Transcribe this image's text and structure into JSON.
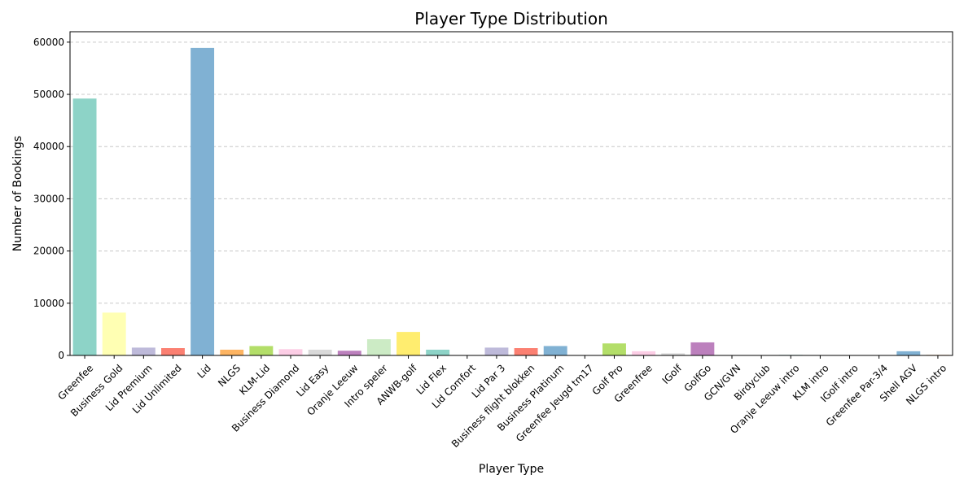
{
  "chart_data": {
    "type": "bar",
    "title": "Player Type Distribution",
    "xlabel": "Player Type",
    "ylabel": "Number of Bookings",
    "ylim": [
      0,
      62000
    ],
    "yticks": [
      0,
      10000,
      20000,
      30000,
      40000,
      50000,
      60000
    ],
    "grid": "y-dashed",
    "categories": [
      "Greenfee",
      "Business Gold",
      "Lid Premium",
      "Lid Unlimited",
      "Lid",
      "NLGS",
      "KLM-Lid",
      "Business Diamond",
      "Lid Easy",
      "Oranje Leeuw",
      "Intro speler",
      "ANWB-golf",
      "Lid Flex",
      "Lid Comfort",
      "Lid Par 3",
      "Business flight blokken",
      "Business Platinum",
      "Greenfee Jeugd tm17",
      "Golf Pro",
      "Greenfree",
      "IGolf",
      "GolfGo",
      "GCN/GVN",
      "Birdyclub",
      "Oranje Leeuw intro",
      "KLM intro",
      "IGolf intro",
      "Greenfee Par-3/4",
      "Shell AGV",
      "NLGS intro"
    ],
    "values": [
      49200,
      8200,
      1500,
      1400,
      58900,
      1100,
      1800,
      1200,
      1100,
      900,
      3100,
      4500,
      1100,
      30,
      1500,
      1400,
      1800,
      30,
      2300,
      800,
      400,
      2500,
      50,
      30,
      100,
      30,
      30,
      30,
      800,
      100
    ],
    "colors": [
      "#8dd3c7",
      "#ffffb3",
      "#bebada",
      "#fb8072",
      "#80b1d3",
      "#fdb462",
      "#b3de69",
      "#fccde5",
      "#d9d9d9",
      "#bc80bd",
      "#ccebc5",
      "#ffed6f"
    ]
  }
}
